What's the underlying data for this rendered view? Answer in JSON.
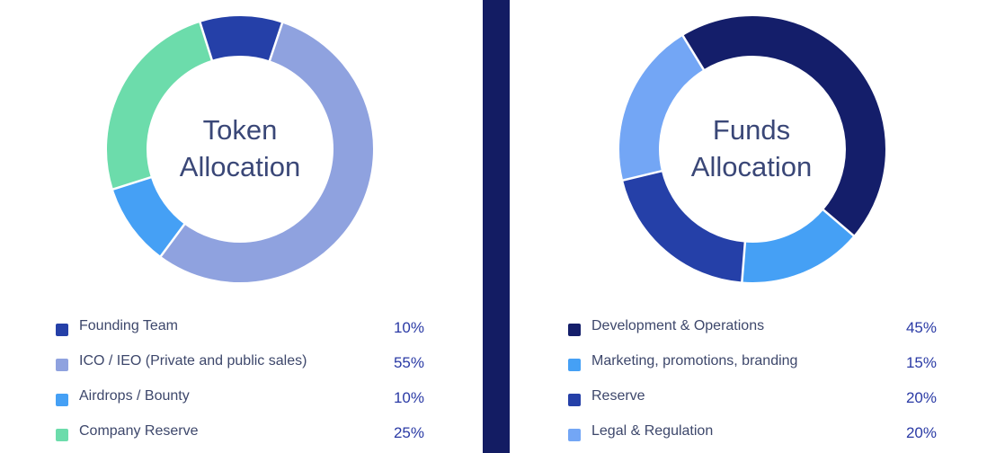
{
  "chart_data": [
    {
      "type": "pie",
      "title_line1": "Token",
      "title_line2": "Allocation",
      "categories": [
        "Founding Team",
        "ICO / IEO (Private and public sales)",
        "Airdrops / Bounty",
        "Company Reserve"
      ],
      "values": [
        10,
        55,
        10,
        25
      ],
      "value_labels": [
        "10%",
        "55%",
        "10%",
        "25%"
      ],
      "colors": [
        "#2540a8",
        "#8fa2df",
        "#45a0f5",
        "#6cdcab"
      ],
      "legend": "bottom"
    },
    {
      "type": "pie",
      "title_line1": "Funds",
      "title_line2": "Allocation",
      "categories": [
        "Development & Operations",
        "Marketing, promotions, branding",
        "Reserve",
        "Legal & Regulation"
      ],
      "values": [
        45,
        15,
        20,
        20
      ],
      "value_labels": [
        "45%",
        "15%",
        "20%",
        "20%"
      ],
      "colors": [
        "#141e6a",
        "#45a0f5",
        "#2540a8",
        "#73a6f5"
      ],
      "legend": "bottom"
    }
  ]
}
